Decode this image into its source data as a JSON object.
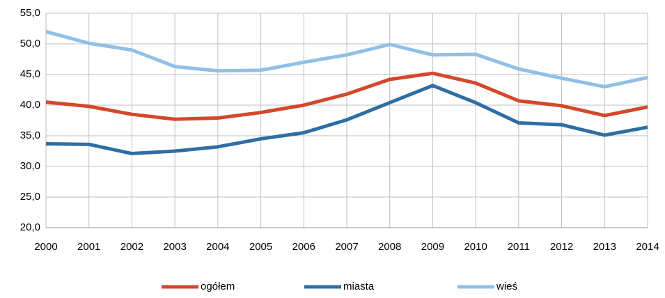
{
  "chart_data": {
    "type": "line",
    "categories": [
      "2000",
      "2001",
      "2002",
      "2003",
      "2004",
      "2005",
      "2006",
      "2007",
      "2008",
      "2009",
      "2010",
      "2011",
      "2012",
      "2013",
      "2014"
    ],
    "series": [
      {
        "name": "ogółem",
        "color": "#d4472a",
        "values": [
          40.5,
          39.8,
          38.5,
          37.7,
          37.9,
          38.8,
          40.0,
          41.8,
          44.2,
          45.2,
          43.6,
          40.7,
          39.9,
          38.3,
          39.7
        ]
      },
      {
        "name": "miasta",
        "color": "#2f6ea3",
        "values": [
          33.7,
          33.6,
          32.1,
          32.5,
          33.2,
          34.5,
          35.5,
          37.6,
          40.4,
          43.2,
          40.4,
          37.1,
          36.8,
          35.1,
          36.4
        ]
      },
      {
        "name": "wieś",
        "color": "#92bfe6",
        "values": [
          52.0,
          50.1,
          49.0,
          46.3,
          45.6,
          45.7,
          47.0,
          48.2,
          49.9,
          48.2,
          48.3,
          45.9,
          44.4,
          43.0,
          44.5
        ]
      }
    ],
    "ylim": [
      20,
      55
    ],
    "yticks": [
      {
        "value": 20,
        "label": "20,0"
      },
      {
        "value": 25,
        "label": "25,0"
      },
      {
        "value": 30,
        "label": "30,0"
      },
      {
        "value": 35,
        "label": "35,0"
      },
      {
        "value": 40,
        "label": "40,0"
      },
      {
        "value": 45,
        "label": "45,0"
      },
      {
        "value": 50,
        "label": "50,0"
      },
      {
        "value": 55,
        "label": "55,0"
      }
    ],
    "grid": true,
    "legend": "bottom"
  }
}
